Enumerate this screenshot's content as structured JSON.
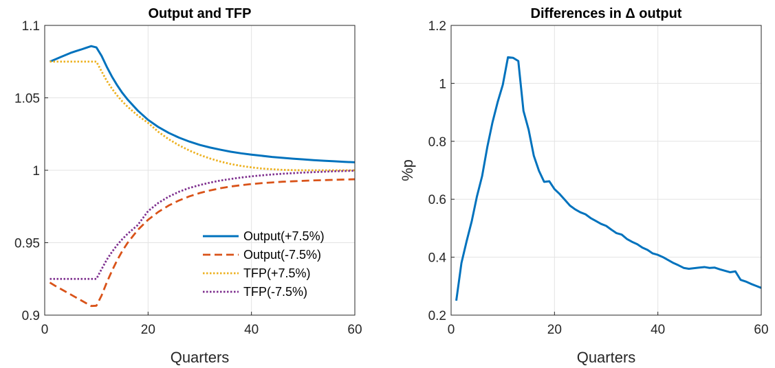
{
  "chart_data": [
    {
      "type": "line",
      "title": "Output and TFP",
      "xlabel": "Quarters",
      "ylabel": "",
      "xlim": [
        0,
        60
      ],
      "ylim": [
        0.9,
        1.1
      ],
      "xticks": [
        0,
        20,
        40,
        60
      ],
      "xtick_labels": [
        "0",
        "20",
        "40",
        "60"
      ],
      "yticks": [
        0.9,
        0.95,
        1.0,
        1.05,
        1.1
      ],
      "ytick_labels": [
        "0.9",
        "0.95",
        "1",
        "1.05",
        "1.1"
      ],
      "grid": true,
      "legend_position": "bottom-right",
      "series": [
        {
          "name": "Output(+7.5%)",
          "color": "#0072BD",
          "style": "solid",
          "points": [
            [
              1,
              1.075
            ],
            [
              2,
              1.0765
            ],
            [
              3,
              1.078
            ],
            [
              4,
              1.0795
            ],
            [
              5,
              1.081
            ],
            [
              6,
              1.0822
            ],
            [
              7,
              1.0833
            ],
            [
              8,
              1.0845
            ],
            [
              9,
              1.0857
            ],
            [
              10,
              1.0848
            ],
            [
              11,
              1.079
            ],
            [
              12,
              1.0715
            ],
            [
              13,
              1.0647
            ],
            [
              14,
              1.0588
            ],
            [
              15,
              1.0535
            ],
            [
              16,
              1.049
            ],
            [
              18,
              1.0412
            ],
            [
              20,
              1.0348
            ],
            [
              22,
              1.0298
            ],
            [
              24,
              1.0258
            ],
            [
              26,
              1.0225
            ],
            [
              28,
              1.0198
            ],
            [
              30,
              1.0175
            ],
            [
              32,
              1.0157
            ],
            [
              34,
              1.0142
            ],
            [
              36,
              1.0128
            ],
            [
              38,
              1.0117
            ],
            [
              40,
              1.0108
            ],
            [
              42,
              1.01
            ],
            [
              44,
              1.0092
            ],
            [
              46,
              1.0086
            ],
            [
              48,
              1.008
            ],
            [
              50,
              1.0075
            ],
            [
              52,
              1.007
            ],
            [
              54,
              1.0066
            ],
            [
              56,
              1.0062
            ],
            [
              58,
              1.0058
            ],
            [
              60,
              1.0055
            ]
          ]
        },
        {
          "name": "Output(-7.5%)",
          "color": "#D95319",
          "style": "dashed",
          "points": [
            [
              1,
              0.9225
            ],
            [
              2,
              0.9203
            ],
            [
              3,
              0.9183
            ],
            [
              4,
              0.9163
            ],
            [
              5,
              0.9143
            ],
            [
              6,
              0.9123
            ],
            [
              7,
              0.9103
            ],
            [
              8,
              0.9083
            ],
            [
              9,
              0.9063
            ],
            [
              10,
              0.9065
            ],
            [
              11,
              0.9135
            ],
            [
              12,
              0.9225
            ],
            [
              13,
              0.9305
            ],
            [
              14,
              0.9378
            ],
            [
              15,
              0.9442
            ],
            [
              16,
              0.9497
            ],
            [
              18,
              0.9588
            ],
            [
              20,
              0.9658
            ],
            [
              22,
              0.9713
            ],
            [
              24,
              0.9757
            ],
            [
              26,
              0.9792
            ],
            [
              28,
              0.982
            ],
            [
              30,
              0.9843
            ],
            [
              32,
              0.9861
            ],
            [
              34,
              0.9876
            ],
            [
              36,
              0.9888
            ],
            [
              38,
              0.9897
            ],
            [
              40,
              0.9905
            ],
            [
              42,
              0.9911
            ],
            [
              44,
              0.9916
            ],
            [
              46,
              0.9921
            ],
            [
              48,
              0.9924
            ],
            [
              50,
              0.9927
            ],
            [
              52,
              0.993
            ],
            [
              54,
              0.9932
            ],
            [
              56,
              0.9934
            ],
            [
              58,
              0.9936
            ],
            [
              60,
              0.9938
            ]
          ]
        },
        {
          "name": "TFP(+7.5%)",
          "color": "#EDB120",
          "style": "dotted",
          "points": [
            [
              1,
              1.075
            ],
            [
              2,
              1.075
            ],
            [
              3,
              1.075
            ],
            [
              4,
              1.075
            ],
            [
              5,
              1.075
            ],
            [
              6,
              1.075
            ],
            [
              7,
              1.075
            ],
            [
              8,
              1.075
            ],
            [
              9,
              1.075
            ],
            [
              10,
              1.075
            ],
            [
              11,
              1.0683
            ],
            [
              12,
              1.0618
            ],
            [
              13,
              1.0564
            ],
            [
              14,
              1.0517
            ],
            [
              15,
              1.0476
            ],
            [
              16,
              1.044
            ],
            [
              18,
              1.0378
            ],
            [
              20,
              1.0327
            ],
            [
              22,
              1.0265
            ],
            [
              24,
              1.0214
            ],
            [
              26,
              1.0172
            ],
            [
              28,
              1.0136
            ],
            [
              30,
              1.0106
            ],
            [
              32,
              1.0081
            ],
            [
              34,
              1.006
            ],
            [
              36,
              1.0043
            ],
            [
              38,
              1.003
            ],
            [
              40,
              1.002
            ],
            [
              42,
              1.0012
            ],
            [
              44,
              1.0007
            ],
            [
              46,
              1.0003
            ],
            [
              48,
              1.0001
            ],
            [
              50,
              1.0
            ],
            [
              55,
              1.0
            ],
            [
              60,
              1.0
            ]
          ]
        },
        {
          "name": "TFP(-7.5%)",
          "color": "#7E2F8E",
          "style": "dotted",
          "points": [
            [
              1,
              0.925
            ],
            [
              2,
              0.925
            ],
            [
              3,
              0.925
            ],
            [
              4,
              0.925
            ],
            [
              5,
              0.925
            ],
            [
              6,
              0.925
            ],
            [
              7,
              0.925
            ],
            [
              8,
              0.925
            ],
            [
              9,
              0.925
            ],
            [
              10,
              0.925
            ],
            [
              11,
              0.9317
            ],
            [
              12,
              0.9382
            ],
            [
              13,
              0.9436
            ],
            [
              14,
              0.9483
            ],
            [
              15,
              0.9524
            ],
            [
              16,
              0.956
            ],
            [
              18,
              0.9622
            ],
            [
              20,
              0.9718
            ],
            [
              22,
              0.9775
            ],
            [
              24,
              0.9818
            ],
            [
              26,
              0.9852
            ],
            [
              28,
              0.9878
            ],
            [
              30,
              0.9898
            ],
            [
              32,
              0.9915
            ],
            [
              34,
              0.9929
            ],
            [
              36,
              0.994
            ],
            [
              38,
              0.995
            ],
            [
              40,
              0.9958
            ],
            [
              42,
              0.9965
            ],
            [
              44,
              0.9971
            ],
            [
              46,
              0.9976
            ],
            [
              48,
              0.998
            ],
            [
              50,
              0.9984
            ],
            [
              52,
              0.9987
            ],
            [
              54,
              0.999
            ],
            [
              56,
              0.9993
            ],
            [
              58,
              0.9995
            ],
            [
              60,
              0.9997
            ]
          ]
        }
      ]
    },
    {
      "type": "line",
      "title": "Differences in  Δ output",
      "xlabel": "Quarters",
      "ylabel": "%p",
      "xlim": [
        0,
        60
      ],
      "ylim": [
        0.2,
        1.2
      ],
      "xticks": [
        0,
        20,
        40,
        60
      ],
      "xtick_labels": [
        "0",
        "20",
        "40",
        "60"
      ],
      "yticks": [
        0.2,
        0.4,
        0.6,
        0.8,
        1.0,
        1.2
      ],
      "ytick_labels": [
        "0.2",
        "0.4",
        "0.6",
        "0.8",
        "1",
        "1.2"
      ],
      "grid": true,
      "series": [
        {
          "color": "#0072BD",
          "style": "solid",
          "points": [
            [
              1,
              0.25
            ],
            [
              2,
              0.38
            ],
            [
              3,
              0.455
            ],
            [
              4,
              0.525
            ],
            [
              5,
              0.61
            ],
            [
              6,
              0.68
            ],
            [
              7,
              0.78
            ],
            [
              8,
              0.865
            ],
            [
              9,
              0.935
            ],
            [
              10,
              0.995
            ],
            [
              11,
              1.09
            ],
            [
              12,
              1.088
            ],
            [
              13,
              1.077
            ],
            [
              14,
              0.905
            ],
            [
              15,
              0.84
            ],
            [
              16,
              0.75
            ],
            [
              17,
              0.698
            ],
            [
              18,
              0.66
            ],
            [
              19,
              0.662
            ],
            [
              20,
              0.635
            ],
            [
              21,
              0.618
            ],
            [
              22,
              0.598
            ],
            [
              23,
              0.578
            ],
            [
              24,
              0.565
            ],
            [
              25,
              0.555
            ],
            [
              26,
              0.548
            ],
            [
              27,
              0.535
            ],
            [
              28,
              0.525
            ],
            [
              29,
              0.515
            ],
            [
              30,
              0.508
            ],
            [
              31,
              0.495
            ],
            [
              32,
              0.483
            ],
            [
              33,
              0.478
            ],
            [
              34,
              0.463
            ],
            [
              35,
              0.453
            ],
            [
              36,
              0.445
            ],
            [
              37,
              0.433
            ],
            [
              38,
              0.425
            ],
            [
              39,
              0.413
            ],
            [
              40,
              0.408
            ],
            [
              41,
              0.4
            ],
            [
              42,
              0.39
            ],
            [
              43,
              0.38
            ],
            [
              44,
              0.372
            ],
            [
              45,
              0.363
            ],
            [
              46,
              0.36
            ],
            [
              47,
              0.362
            ],
            [
              48,
              0.364
            ],
            [
              49,
              0.366
            ],
            [
              50,
              0.363
            ],
            [
              51,
              0.364
            ],
            [
              52,
              0.358
            ],
            [
              53,
              0.353
            ],
            [
              54,
              0.348
            ],
            [
              55,
              0.351
            ],
            [
              56,
              0.322
            ],
            [
              57,
              0.316
            ],
            [
              58,
              0.308
            ],
            [
              59,
              0.301
            ],
            [
              60,
              0.294
            ]
          ]
        }
      ]
    }
  ]
}
